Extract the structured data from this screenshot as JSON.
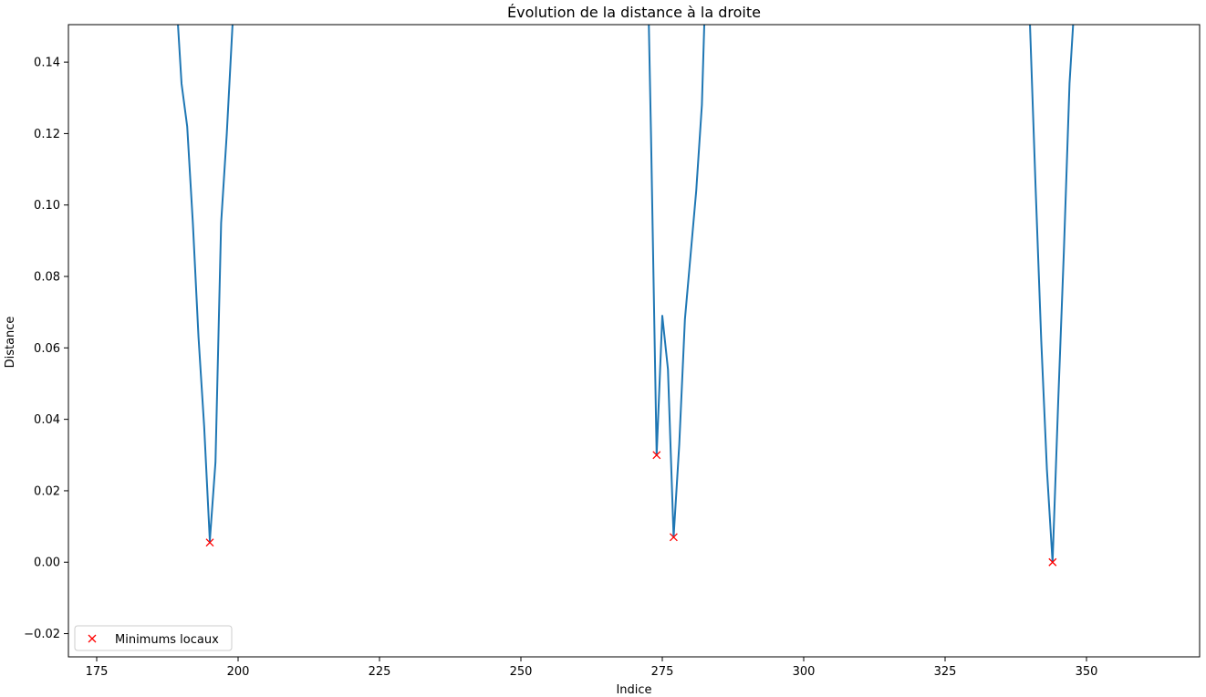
{
  "chart_data": {
    "type": "line",
    "title": "Évolution de la distance à la droite",
    "xlabel": "Indice",
    "ylabel": "Distance",
    "xlim": [
      170,
      370
    ],
    "ylim": [
      -0.0265,
      0.1505
    ],
    "x_ticks": [
      175,
      200,
      225,
      250,
      275,
      300,
      325,
      350
    ],
    "x_tick_labels": [
      "175",
      "200",
      "225",
      "250",
      "275",
      "300",
      "325",
      "350"
    ],
    "y_ticks": [
      -0.02,
      0.0,
      0.02,
      0.04,
      0.06,
      0.08,
      0.1,
      0.12,
      0.14
    ],
    "y_tick_labels": [
      "−0.02",
      "0.00",
      "0.02",
      "0.04",
      "0.06",
      "0.08",
      "0.10",
      "0.12",
      "0.14"
    ],
    "grid": false,
    "legend": {
      "position": "lower left",
      "entries": [
        {
          "label": "Minimums locaux",
          "marker": "x",
          "color": "#ff0000"
        }
      ]
    },
    "series": [
      {
        "kind": "line",
        "color": "#1f77b4",
        "segments": [
          [
            [
              189,
              0.16
            ],
            [
              190,
              0.134
            ],
            [
              191,
              0.122
            ],
            [
              192,
              0.095
            ],
            [
              193,
              0.063
            ],
            [
              194,
              0.038
            ],
            [
              195,
              0.006
            ],
            [
              196,
              0.028
            ],
            [
              197,
              0.095
            ],
            [
              198,
              0.12
            ],
            [
              199,
              0.15
            ],
            [
              199.5,
              0.16
            ]
          ],
          [
            [
              272.5,
              0.16
            ],
            [
              273,
              0.12
            ],
            [
              274,
              0.03
            ],
            [
              275,
              0.069
            ],
            [
              276,
              0.054
            ],
            [
              277,
              0.007
            ],
            [
              278,
              0.033
            ],
            [
              279,
              0.068
            ],
            [
              280,
              0.086
            ],
            [
              281,
              0.104
            ],
            [
              282,
              0.128
            ],
            [
              282.6,
              0.16
            ]
          ],
          [
            [
              339.8,
              0.16
            ],
            [
              341,
              0.105
            ],
            [
              342,
              0.062
            ],
            [
              343,
              0.026
            ],
            [
              344,
              0.0
            ],
            [
              345,
              0.045
            ],
            [
              346,
              0.087
            ],
            [
              347,
              0.134
            ],
            [
              348,
              0.16
            ]
          ]
        ]
      },
      {
        "name": "Minimums locaux",
        "kind": "scatter",
        "marker": "x",
        "color": "#ff0000",
        "points": [
          [
            195,
            0.0055
          ],
          [
            274,
            0.03
          ],
          [
            277,
            0.007
          ],
          [
            344,
            0.0
          ]
        ]
      }
    ]
  }
}
